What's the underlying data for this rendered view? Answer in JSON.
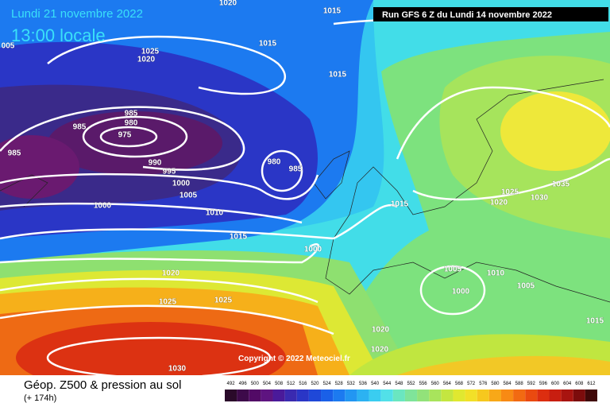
{
  "header": {
    "valid_date": "Lundi 21 novembre 2022",
    "local_time": "13:00 locale",
    "run": "Run GFS 6 Z du Lundi 14 novembre 2022"
  },
  "copyright": "Copyright © 2022 Meteociel.fr",
  "footer": {
    "title": "Géop. Z500 & pression au sol",
    "lead_time": "(+ 174h)"
  },
  "isobar_labels": [
    1020,
    1015,
    "005",
    1015,
    1025,
    1020,
    1015,
    985,
    985,
    980,
    975,
    985,
    990,
    995,
    1000,
    980,
    985,
    1005,
    1000,
    1010,
    1015,
    1015,
    1025,
    1030,
    1035,
    1020,
    1000,
    1020,
    1005,
    1010,
    1005,
    1000,
    1025,
    1025,
    1015,
    1020,
    1020,
    1030
  ],
  "color_scale": {
    "values": [
      492,
      496,
      500,
      504,
      508,
      512,
      516,
      520,
      524,
      528,
      532,
      536,
      540,
      544,
      548,
      552,
      556,
      560,
      564,
      568,
      572,
      576,
      580,
      584,
      588,
      592,
      596,
      600,
      604,
      608,
      612
    ],
    "colors": [
      "#2a0a2a",
      "#3d0a4a",
      "#520a66",
      "#5e1480",
      "#4a1a9a",
      "#3a2ab0",
      "#2a36c6",
      "#1f48d8",
      "#1a60e8",
      "#1c7af0",
      "#2296f2",
      "#2cb2f2",
      "#3acdf0",
      "#52e0e8",
      "#6ae6c0",
      "#7fe49a",
      "#92e27a",
      "#a8e45c",
      "#c4e640",
      "#e0e830",
      "#f2e028",
      "#f6c81e",
      "#f8a818",
      "#f88a14",
      "#f26a12",
      "#ea4a10",
      "#dc2e10",
      "#c81e10",
      "#a81410",
      "#7c0c0c",
      "#400808"
    ]
  }
}
